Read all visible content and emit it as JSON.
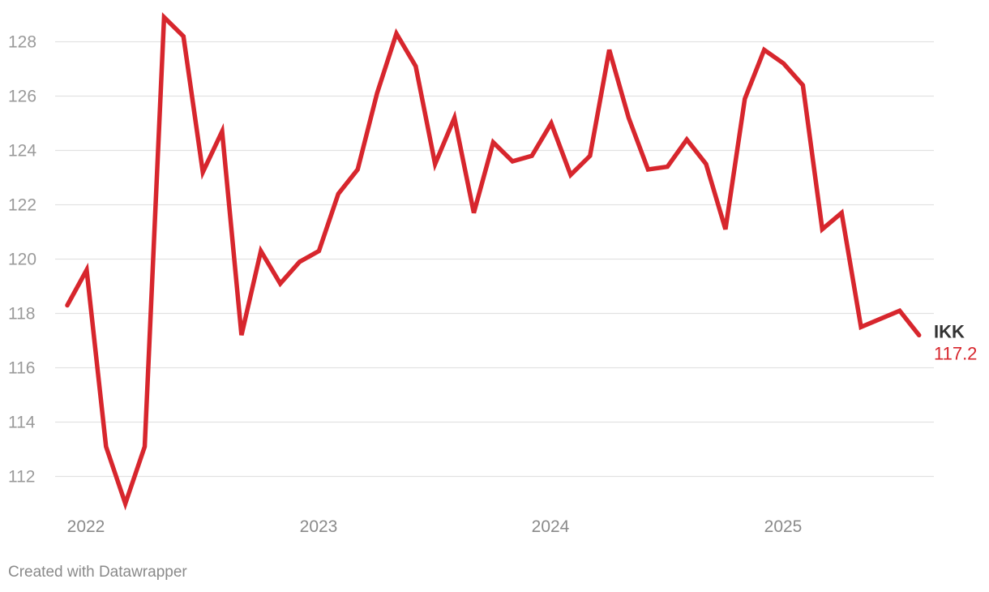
{
  "chart_data": {
    "type": "line",
    "title": "",
    "xlabel": "",
    "ylabel": "",
    "ylim": [
      111,
      129
    ],
    "yticks": [
      "112",
      "114",
      "116",
      "118",
      "120",
      "122",
      "124",
      "126",
      "128"
    ],
    "xticks": [
      "2022",
      "2023",
      "2024",
      "2025"
    ],
    "grid": true,
    "line_color": "#d7262d",
    "series": [
      {
        "name": "IKK",
        "end_label": "117.2",
        "values": [
          118.3,
          119.6,
          113.1,
          111.0,
          113.1,
          128.9,
          128.2,
          123.2,
          124.7,
          117.2,
          120.3,
          119.1,
          119.9,
          120.3,
          122.4,
          123.3,
          126.1,
          128.3,
          127.1,
          123.5,
          125.2,
          121.7,
          124.3,
          123.6,
          123.8,
          125.0,
          123.1,
          123.8,
          127.7,
          125.2,
          123.3,
          123.4,
          124.4,
          123.5,
          121.1,
          125.9,
          127.7,
          127.2,
          126.4,
          121.1,
          121.7,
          117.5,
          117.8,
          118.1,
          117.2
        ]
      }
    ]
  },
  "footer": "Created with Datawrapper"
}
